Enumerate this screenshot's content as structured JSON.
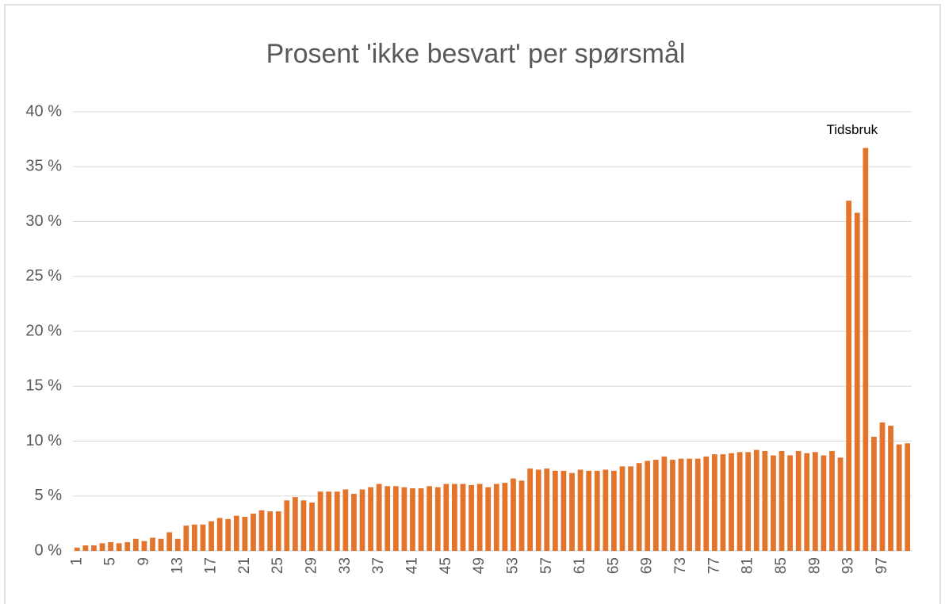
{
  "chart_data": {
    "type": "bar",
    "title": "Prosent 'ikke besvart' per spørsmål",
    "annotation": "Tidsbruk",
    "categories": [
      1,
      null,
      null,
      null,
      5,
      null,
      null,
      null,
      9,
      null,
      null,
      null,
      13,
      null,
      null,
      null,
      17,
      null,
      null,
      null,
      21,
      null,
      null,
      null,
      25,
      null,
      null,
      null,
      29,
      null,
      null,
      null,
      33,
      null,
      null,
      null,
      37,
      null,
      null,
      null,
      41,
      null,
      null,
      null,
      45,
      null,
      null,
      null,
      49,
      null,
      null,
      null,
      53,
      null,
      null,
      null,
      57,
      null,
      null,
      null,
      61,
      null,
      null,
      null,
      65,
      null,
      null,
      null,
      69,
      null,
      null,
      null,
      73,
      null,
      null,
      null,
      77,
      null,
      null,
      null,
      81,
      null,
      null,
      null,
      85,
      null,
      null,
      null,
      89,
      null,
      null,
      null,
      93,
      null,
      null,
      null,
      97,
      null,
      null,
      null
    ],
    "values": [
      0.3,
      0.5,
      0.5,
      0.7,
      0.8,
      0.7,
      0.8,
      1.1,
      0.9,
      1.2,
      1.1,
      1.7,
      1.1,
      2.3,
      2.4,
      2.4,
      2.7,
      3.0,
      2.9,
      3.2,
      3.1,
      3.4,
      3.7,
      3.6,
      3.6,
      4.6,
      4.9,
      4.6,
      4.4,
      5.4,
      5.4,
      5.4,
      5.6,
      5.2,
      5.6,
      5.8,
      6.1,
      5.9,
      5.9,
      5.8,
      5.7,
      5.7,
      5.9,
      5.8,
      6.1,
      6.1,
      6.1,
      6.0,
      6.1,
      5.8,
      6.1,
      6.2,
      6.6,
      6.4,
      7.5,
      7.4,
      7.5,
      7.3,
      7.3,
      7.1,
      7.4,
      7.3,
      7.3,
      7.4,
      7.3,
      7.7,
      7.7,
      8.0,
      8.2,
      8.3,
      8.6,
      8.3,
      8.4,
      8.4,
      8.4,
      8.6,
      8.8,
      8.8,
      8.9,
      9.0,
      9.0,
      9.2,
      9.1,
      8.7,
      9.1,
      8.7,
      9.1,
      8.9,
      9.0,
      8.7,
      9.1,
      8.5,
      31.9,
      30.8,
      36.7,
      10.4,
      11.7,
      11.4,
      9.7,
      9.8
    ],
    "color": "#e2742c",
    "ylim": [
      0,
      40
    ],
    "yticks": [
      {
        "value": 0,
        "label": "0 %"
      },
      {
        "value": 5,
        "label": "5 %"
      },
      {
        "value": 10,
        "label": "10 %"
      },
      {
        "value": 15,
        "label": "15 %"
      },
      {
        "value": 20,
        "label": "20 %"
      },
      {
        "value": 25,
        "label": "25 %"
      },
      {
        "value": 30,
        "label": "30 %"
      },
      {
        "value": 35,
        "label": "35 %"
      },
      {
        "value": 40,
        "label": "40 %"
      }
    ],
    "grid": true
  }
}
